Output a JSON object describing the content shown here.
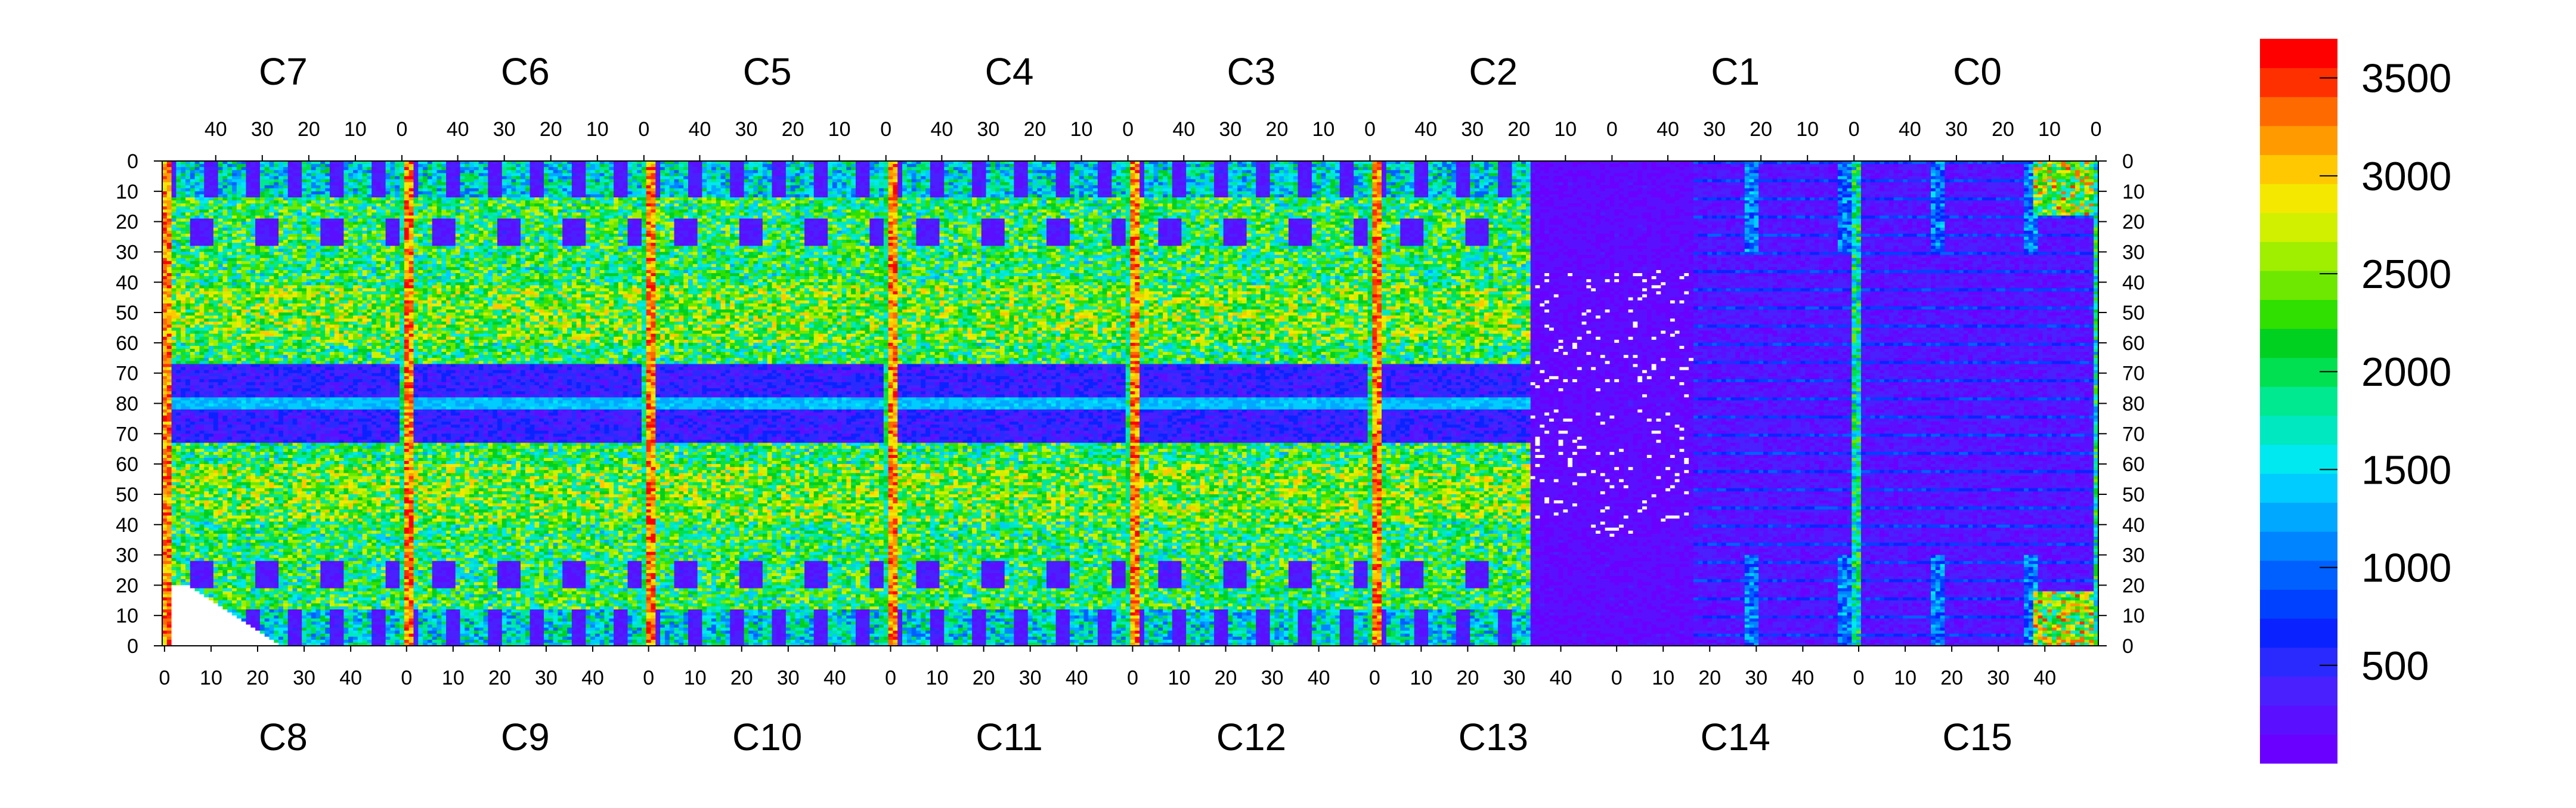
{
  "chart_data": {
    "type": "heatmap",
    "title": "",
    "top_chip_labels": [
      "C7",
      "C6",
      "C5",
      "C4",
      "C3",
      "C2",
      "C1",
      "C0"
    ],
    "bottom_chip_labels": [
      "C8",
      "C9",
      "C10",
      "C11",
      "C12",
      "C13",
      "C14",
      "C15"
    ],
    "top_column_ticks": [
      "40",
      "30",
      "20",
      "10",
      "0"
    ],
    "bottom_column_ticks": [
      "0",
      "10",
      "20",
      "30",
      "40"
    ],
    "row_ticks": [
      "0",
      "10",
      "20",
      "30",
      "40",
      "50",
      "60",
      "70",
      "80",
      "70",
      "60",
      "50",
      "40",
      "30",
      "20",
      "10",
      "0"
    ],
    "colorbar": {
      "min": 0,
      "max": 3700,
      "ticks": [
        "500",
        "1000",
        "1500",
        "2000",
        "2500",
        "3000",
        "3500"
      ],
      "tick_values": [
        500,
        1000,
        1500,
        2000,
        2500,
        3000,
        3500
      ],
      "palette": [
        "#6a00ff",
        "#5a10ff",
        "#4a20ff",
        "#2a2aff",
        "#0a22ff",
        "#0040ff",
        "#0060ff",
        "#0084ff",
        "#00a8ff",
        "#00ccff",
        "#00e8f0",
        "#00e8c0",
        "#00e890",
        "#00e050",
        "#00d020",
        "#30e000",
        "#6ee800",
        "#a0ee00",
        "#d0f000",
        "#f4e800",
        "#ffc800",
        "#ff9a00",
        "#ff6a00",
        "#ff3000",
        "#ff0000"
      ]
    },
    "colors": {
      "background_low": "#6a00ff",
      "hot_column": "#ff2a00",
      "empty": "#ffffff"
    },
    "n_chips_per_row": 8,
    "n_columns_per_chip": 52,
    "n_rows": 160,
    "description_of_values": "per-pixel occupancy counts, 0 to about 3700"
  }
}
